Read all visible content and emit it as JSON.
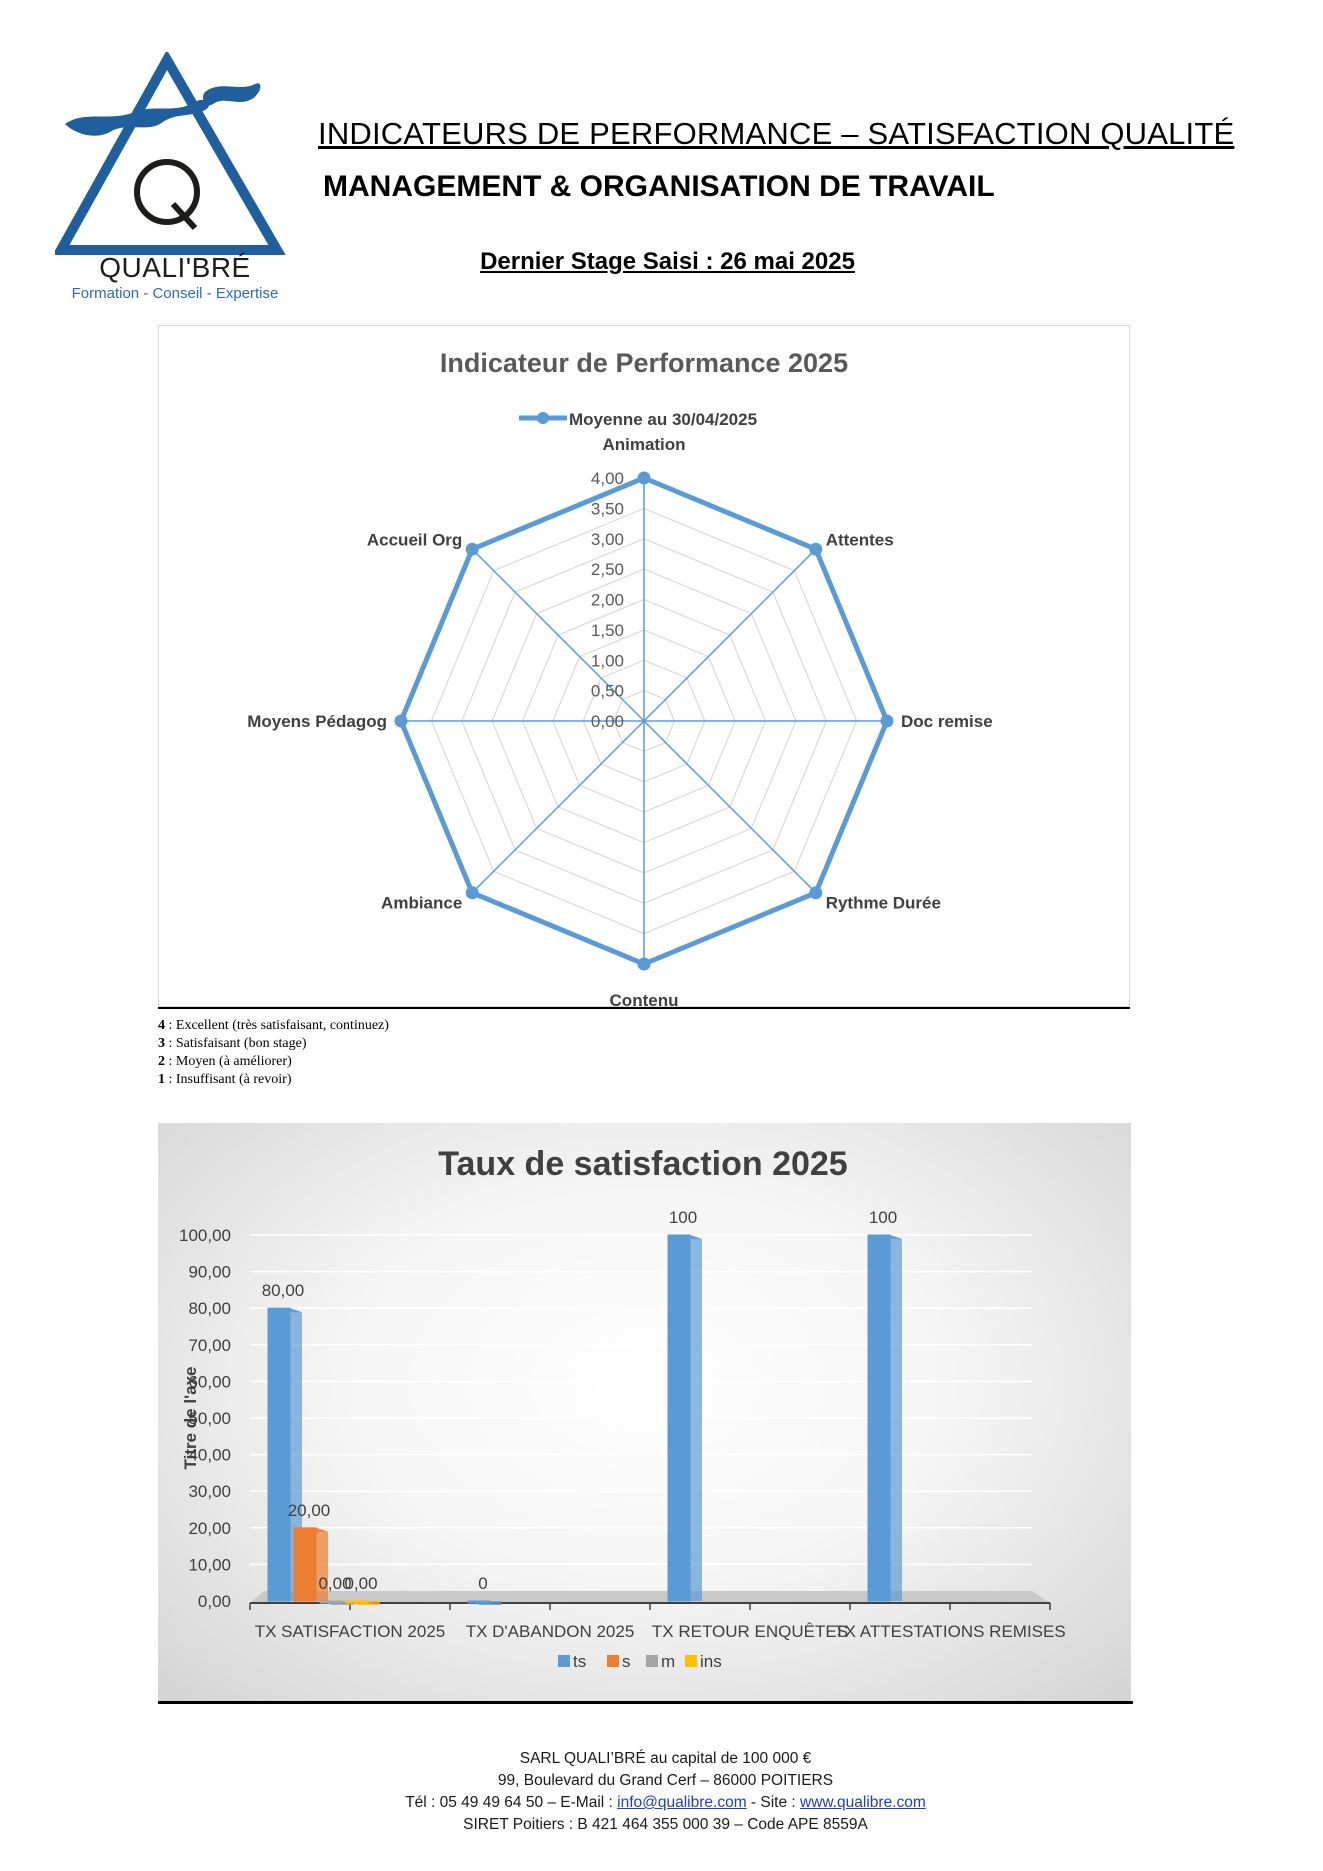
{
  "logo": {
    "name": "QUALI'BRÉ",
    "letter": "Q",
    "tagline": "Formation - Conseil - Expertise"
  },
  "header": {
    "title_line1": "INDICATEURS DE PERFORMANCE – SATISFACTION QUALITÉ",
    "title_line2": "MANAGEMENT & ORGANISATION DE TRAVAIL",
    "last_stage": "Dernier Stage Saisi : 26 mai 2025"
  },
  "scale_legend": [
    {
      "num": "4",
      "text": " : Excellent (très satisfaisant, continuez)"
    },
    {
      "num": "3",
      "text": " : Satisfaisant (bon stage)"
    },
    {
      "num": "2",
      "text": " : Moyen (à améliorer)"
    },
    {
      "num": "1",
      "text": " : Insuffisant (à revoir)"
    }
  ],
  "chart_data": [
    {
      "type": "radar",
      "title": "Indicateur de Performance 2025",
      "legend_position": "top",
      "categories": [
        "Animation",
        "Attentes",
        "Doc remise",
        "Rythme Durée",
        "Contenu",
        "Ambiance",
        "Moyens Pédagog",
        "Accueil Org"
      ],
      "series": [
        {
          "name": "Moyenne au 30/04/2025",
          "values": [
            4,
            4,
            4,
            4,
            4,
            4,
            4,
            4
          ],
          "color": "#5b9bd5"
        }
      ],
      "rlim": [
        0,
        4
      ],
      "tick_labels": [
        "0,00",
        "0,50",
        "1,00",
        "1,50",
        "2,00",
        "2,50",
        "3,00",
        "3,50",
        "4,00"
      ],
      "grid": true
    },
    {
      "type": "bar",
      "title": "Taux de satisfaction 2025",
      "ylabel": "Titre de l'axe",
      "ylim": [
        0,
        100
      ],
      "tick_labels": [
        "0,00",
        "10,00",
        "20,00",
        "30,00",
        "40,00",
        "50,00",
        "60,00",
        "70,00",
        "80,00",
        "90,00",
        "100,00"
      ],
      "categories": [
        "TX SATISFACTION 2025",
        "TX D'ABANDON 2025",
        "TX RETOUR ENQUÊTES",
        "TX ATTESTATIONS REMISES"
      ],
      "legend_position": "bottom",
      "series": [
        {
          "name": "ts",
          "color": "#5b9bd5",
          "values": [
            80,
            0,
            100,
            100
          ],
          "labels": [
            "80,00",
            "0",
            "100",
            "100"
          ]
        },
        {
          "name": "s",
          "color": "#ed7d31",
          "values": [
            20,
            null,
            null,
            null
          ],
          "labels": [
            "20,00",
            "",
            "",
            ""
          ]
        },
        {
          "name": "m",
          "color": "#a5a5a5",
          "values": [
            0,
            null,
            null,
            null
          ],
          "labels": [
            "0,00",
            "",
            "",
            ""
          ]
        },
        {
          "name": "ins",
          "color": "#ffc000",
          "values": [
            0,
            null,
            null,
            null
          ],
          "labels": [
            "0,00",
            "",
            "",
            ""
          ]
        }
      ],
      "grid": true
    }
  ],
  "footer": {
    "line1": "SARL QUALI’BRÉ au capital de 100 000 €",
    "line2": "99, Boulevard du Grand Cerf – 86000 POITIERS",
    "line3_prefix": "Tél : 05 49 49 64 50 – E-Mail : ",
    "email": "info@qualibre.com",
    "line3_mid": " - Site : ",
    "site": "www.qualibre.com",
    "line4": "SIRET Poitiers : B 421 464 355 000 39 – Code APE 8559A"
  }
}
